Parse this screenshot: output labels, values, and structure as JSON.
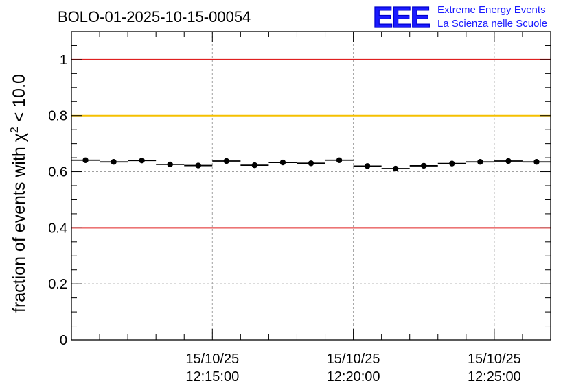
{
  "chart_data": {
    "type": "scatter",
    "title": "BOLO-01-2025-10-15-00054",
    "ylabel_main": "fraction of events with ",
    "ylabel_chi": "χ",
    "ylabel_sup": "2",
    "ylabel_tail": " < 10.0",
    "xlabel": "",
    "ylim": [
      0,
      1.1
    ],
    "y_ticks": [
      0,
      0.2,
      0.4,
      0.6,
      0.8,
      1
    ],
    "y_tick_labels": [
      "0",
      "0.2",
      "0.4",
      "0.6",
      "0.8",
      "1"
    ],
    "xlim_minutes": [
      0,
      17
    ],
    "x_ticks_minutes": [
      5,
      10,
      15
    ],
    "x_tick_labels": [
      {
        "date": "15/10/25",
        "time": "12:15:00"
      },
      {
        "date": "15/10/25",
        "time": "12:20:00"
      },
      {
        "date": "15/10/25",
        "time": "12:25:00"
      }
    ],
    "bin_width_minutes": 1,
    "x_centers_minutes": [
      0.5,
      1.5,
      2.5,
      3.5,
      4.5,
      5.5,
      6.5,
      7.5,
      8.5,
      9.5,
      10.5,
      11.5,
      12.5,
      13.5,
      14.5,
      15.5,
      16.5
    ],
    "values": [
      0.641,
      0.635,
      0.64,
      0.626,
      0.622,
      0.638,
      0.623,
      0.633,
      0.63,
      0.641,
      0.62,
      0.611,
      0.621,
      0.629,
      0.635,
      0.638,
      0.635
    ],
    "reference_lines": [
      {
        "y": 1.0,
        "color": "#e02020"
      },
      {
        "y": 0.8,
        "color": "#f5c000"
      },
      {
        "y": 0.4,
        "color": "#e02020"
      }
    ],
    "grid": true
  },
  "logo": {
    "mark": "EEE",
    "line1": "Extreme Energy Events",
    "line2": "La Scienza nelle Scuole",
    "color": "#1a1aff"
  }
}
